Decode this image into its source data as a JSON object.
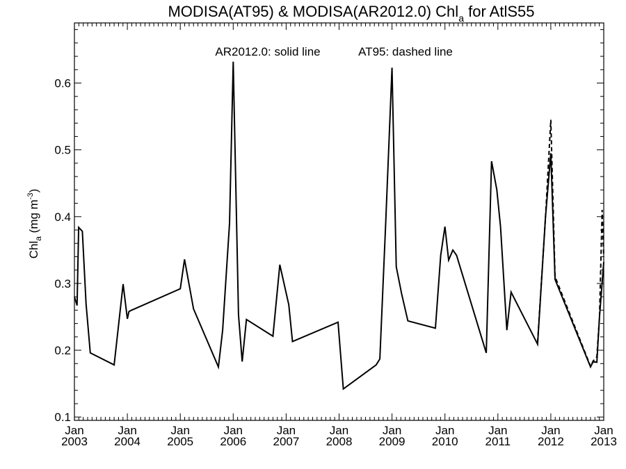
{
  "chart_data": {
    "type": "line",
    "title_main": "MODISA(AT95) & MODISA(AR2012.0)  Chl",
    "title_sub": "a",
    "title_tail": " for AtlS55",
    "ylabel_main": "Chl",
    "ylabel_sub": "a",
    "ylabel_unit": " (mg m",
    "ylabel_exp": "-3",
    "ylabel_close": ")",
    "annotation_solid": "AR2012.0: solid line",
    "annotation_dashed": "AT95: dashed line",
    "xlim": [
      2003.0,
      2013.0
    ],
    "ylim": [
      0.095,
      0.69
    ],
    "x_ticks": [
      {
        "value": 2003,
        "month": "Jan",
        "year": "2003"
      },
      {
        "value": 2004,
        "month": "Jan",
        "year": "2004"
      },
      {
        "value": 2005,
        "month": "Jan",
        "year": "2005"
      },
      {
        "value": 2006,
        "month": "Jan",
        "year": "2006"
      },
      {
        "value": 2007,
        "month": "Jan",
        "year": "2007"
      },
      {
        "value": 2008,
        "month": "Jan",
        "year": "2008"
      },
      {
        "value": 2009,
        "month": "Jan",
        "year": "2009"
      },
      {
        "value": 2010,
        "month": "Jan",
        "year": "2010"
      },
      {
        "value": 2011,
        "month": "Jan",
        "year": "2011"
      },
      {
        "value": 2012,
        "month": "Jan",
        "year": "2012"
      },
      {
        "value": 2013,
        "month": "Jan",
        "year": "2013"
      }
    ],
    "y_ticks": [
      "0.1",
      "0.2",
      "0.3",
      "0.4",
      "0.5",
      "0.6"
    ],
    "grid": false,
    "series": [
      {
        "style": "solid",
        "x": [
          2003.0,
          2003.05,
          2003.08,
          2003.15,
          2003.22,
          2003.3,
          2003.75,
          2003.92,
          2004.0,
          2004.03,
          2004.08,
          2005.0,
          2005.08,
          2005.25,
          2005.72,
          2005.8,
          2005.93,
          2006.0,
          2006.1,
          2006.17,
          2006.25,
          2006.75,
          2006.88,
          2007.05,
          2007.12,
          2007.98,
          2008.08,
          2008.7,
          2008.77,
          2008.88,
          2009.0,
          2009.08,
          2009.18,
          2009.3,
          2009.82,
          2009.92,
          2010.0,
          2010.07,
          2010.15,
          2010.22,
          2010.78,
          2010.88,
          2010.98,
          2011.05,
          2011.17,
          2011.25,
          2011.75,
          2011.9,
          2012.0,
          2012.08,
          2012.75,
          2012.8,
          2012.87,
          2012.92,
          2013.0
        ],
        "y": [
          0.28,
          0.267,
          0.384,
          0.378,
          0.27,
          0.196,
          0.178,
          0.299,
          0.247,
          0.258,
          0.26,
          0.292,
          0.336,
          0.262,
          0.175,
          0.23,
          0.39,
          0.632,
          0.253,
          0.183,
          0.246,
          0.221,
          0.328,
          0.268,
          0.213,
          0.242,
          0.142,
          0.178,
          0.187,
          0.39,
          0.623,
          0.325,
          0.285,
          0.244,
          0.233,
          0.342,
          0.385,
          0.335,
          0.35,
          0.342,
          0.196,
          0.483,
          0.44,
          0.385,
          0.23,
          0.287,
          0.209,
          0.4,
          0.495,
          0.306,
          0.175,
          0.183,
          0.182,
          0.25,
          0.332
        ]
      },
      {
        "style": "dashed",
        "x": [
          2011.75,
          2011.9,
          2012.0,
          2012.08,
          2012.75,
          2012.8,
          2012.87,
          2012.92,
          2012.97,
          2013.0
        ],
        "y": [
          0.212,
          0.4,
          0.545,
          0.31,
          0.176,
          0.184,
          0.19,
          0.25,
          0.41,
          0.34
        ]
      }
    ]
  }
}
